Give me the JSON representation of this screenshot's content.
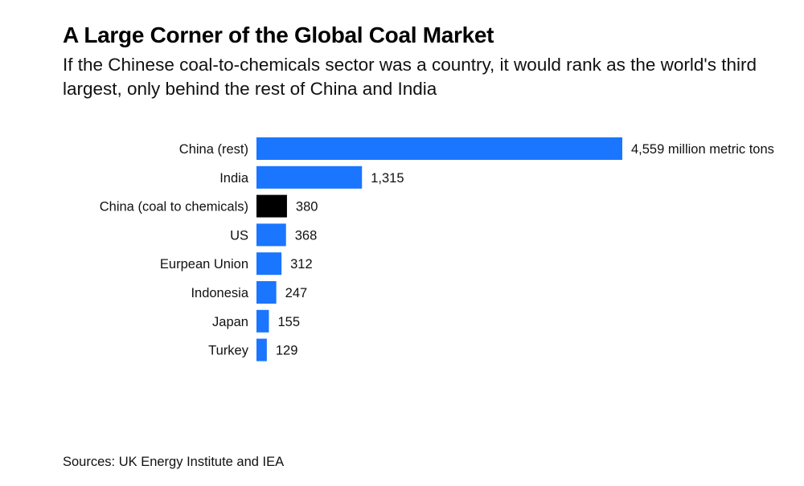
{
  "header": {
    "title": "A Large Corner of the Global Coal Market",
    "subtitle": "If the Chinese coal-to-chemicals sector was a country, it would rank as the world's third largest, only behind the rest of China and India"
  },
  "footer": {
    "source": "Sources: UK Energy Institute and IEA"
  },
  "colors": {
    "default_bar": "#1a75ff",
    "highlight_bar": "#000000"
  },
  "chart_data": {
    "type": "bar",
    "orientation": "horizontal",
    "title": "A Large Corner of the Global Coal Market",
    "subtitle": "If the Chinese coal-to-chemicals sector was a country, it would rank as the world's third largest, only behind the rest of China and India",
    "xlabel": "",
    "ylabel": "",
    "unit": "million metric tons",
    "xlim": [
      0,
      4559
    ],
    "grid": false,
    "legend": "none",
    "categories": [
      "China (rest)",
      "India",
      "China (coal to chemicals)",
      "US",
      "Eurpean Union",
      "Indonesia",
      "Japan",
      "Turkey"
    ],
    "values": [
      4559,
      1315,
      380,
      368,
      312,
      247,
      155,
      129
    ],
    "value_labels": [
      "4,559 million metric tons",
      "1,315",
      "380",
      "368",
      "312",
      "247",
      "155",
      "129"
    ],
    "highlight": [
      "China (coal to chemicals)"
    ],
    "source": "Sources: UK Energy Institute and IEA"
  }
}
